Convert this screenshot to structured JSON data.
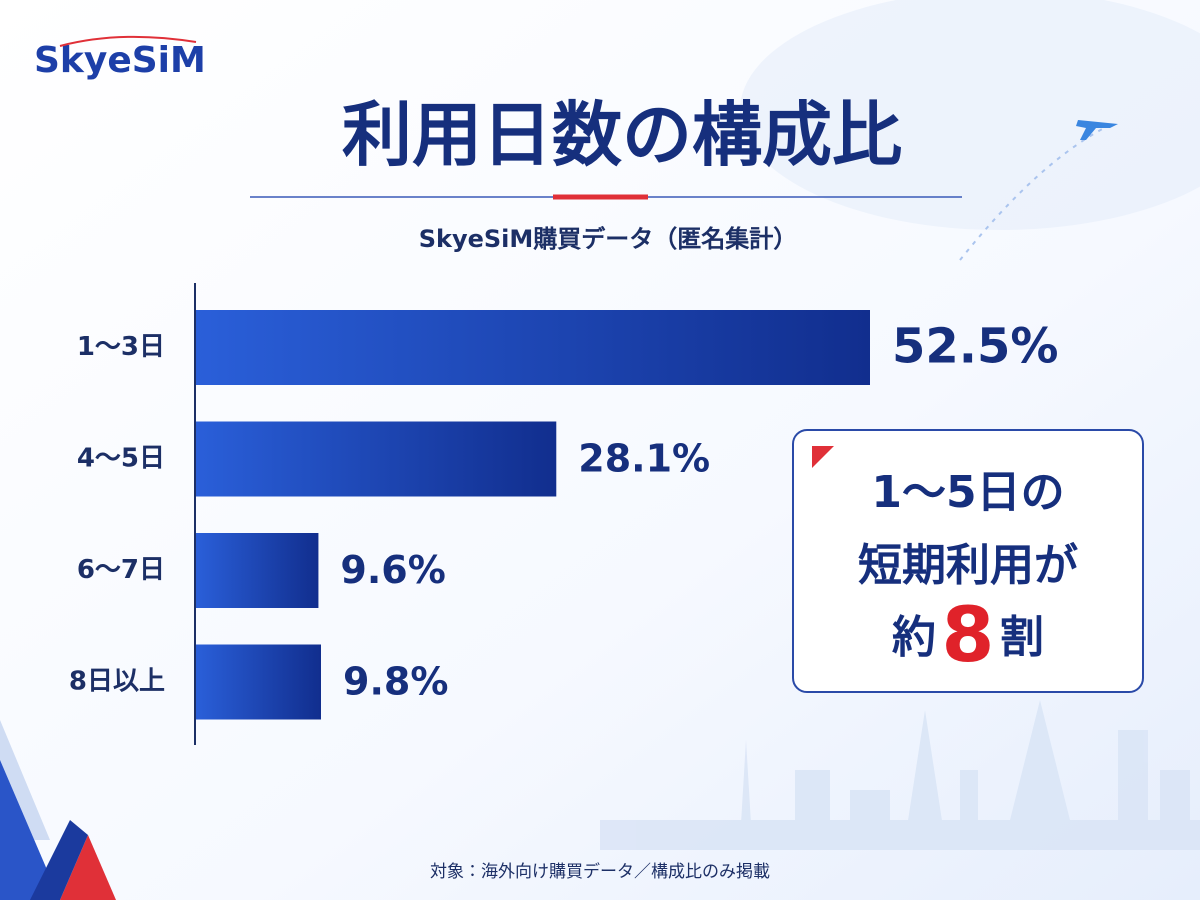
{
  "chart_data": {
    "type": "bar",
    "orientation": "horizontal",
    "logo": "SkyeSiM",
    "title": "利用日数の構成比",
    "subtitle": "SkyeSiM購買データ（匿名集計）",
    "categories": [
      "1〜3日",
      "4〜5日",
      "6〜7日",
      "8日以上"
    ],
    "values": [
      52.5,
      28.1,
      9.6,
      9.8
    ],
    "value_labels": [
      "52.5%",
      "28.1%",
      "9.6%",
      "9.8%"
    ],
    "color": "#1d3fb0",
    "annotation": {
      "line1": "1〜5日の",
      "line2": "短期利用が",
      "line3_prefix": "約",
      "line3_emphasis": "8",
      "line3_suffix": "割"
    },
    "footnote": "対象：海外向け購買データ／構成比のみ掲載"
  }
}
